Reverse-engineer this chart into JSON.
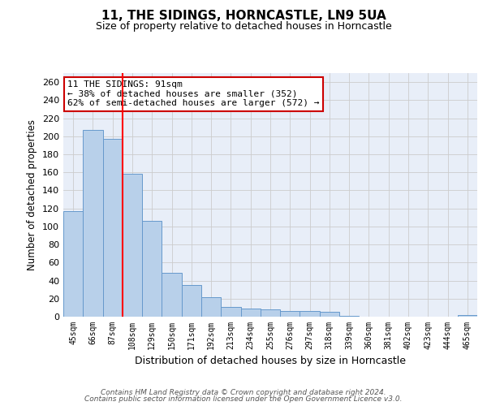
{
  "title1": "11, THE SIDINGS, HORNCASTLE, LN9 5UA",
  "title2": "Size of property relative to detached houses in Horncastle",
  "xlabel": "Distribution of detached houses by size in Horncastle",
  "ylabel": "Number of detached properties",
  "categories": [
    "45sqm",
    "66sqm",
    "87sqm",
    "108sqm",
    "129sqm",
    "150sqm",
    "171sqm",
    "192sqm",
    "213sqm",
    "234sqm",
    "255sqm",
    "276sqm",
    "297sqm",
    "318sqm",
    "339sqm",
    "360sqm",
    "381sqm",
    "402sqm",
    "423sqm",
    "444sqm",
    "465sqm"
  ],
  "values": [
    117,
    207,
    197,
    158,
    106,
    49,
    35,
    22,
    11,
    9,
    8,
    6,
    6,
    5,
    1,
    0,
    0,
    0,
    0,
    0,
    2
  ],
  "bar_color": "#b8d0ea",
  "bar_edge_color": "#6699cc",
  "red_line_x": 2,
  "annotation_text": "11 THE SIDINGS: 91sqm\n← 38% of detached houses are smaller (352)\n62% of semi-detached houses are larger (572) →",
  "annotation_box_color": "#ffffff",
  "annotation_box_edge": "#cc0000",
  "ylim": [
    0,
    270
  ],
  "yticks": [
    0,
    20,
    40,
    60,
    80,
    100,
    120,
    140,
    160,
    180,
    200,
    220,
    240,
    260
  ],
  "footer1": "Contains HM Land Registry data © Crown copyright and database right 2024.",
  "footer2": "Contains public sector information licensed under the Open Government Licence v3.0.",
  "grid_color": "#cccccc",
  "background_color": "#e8eef8"
}
